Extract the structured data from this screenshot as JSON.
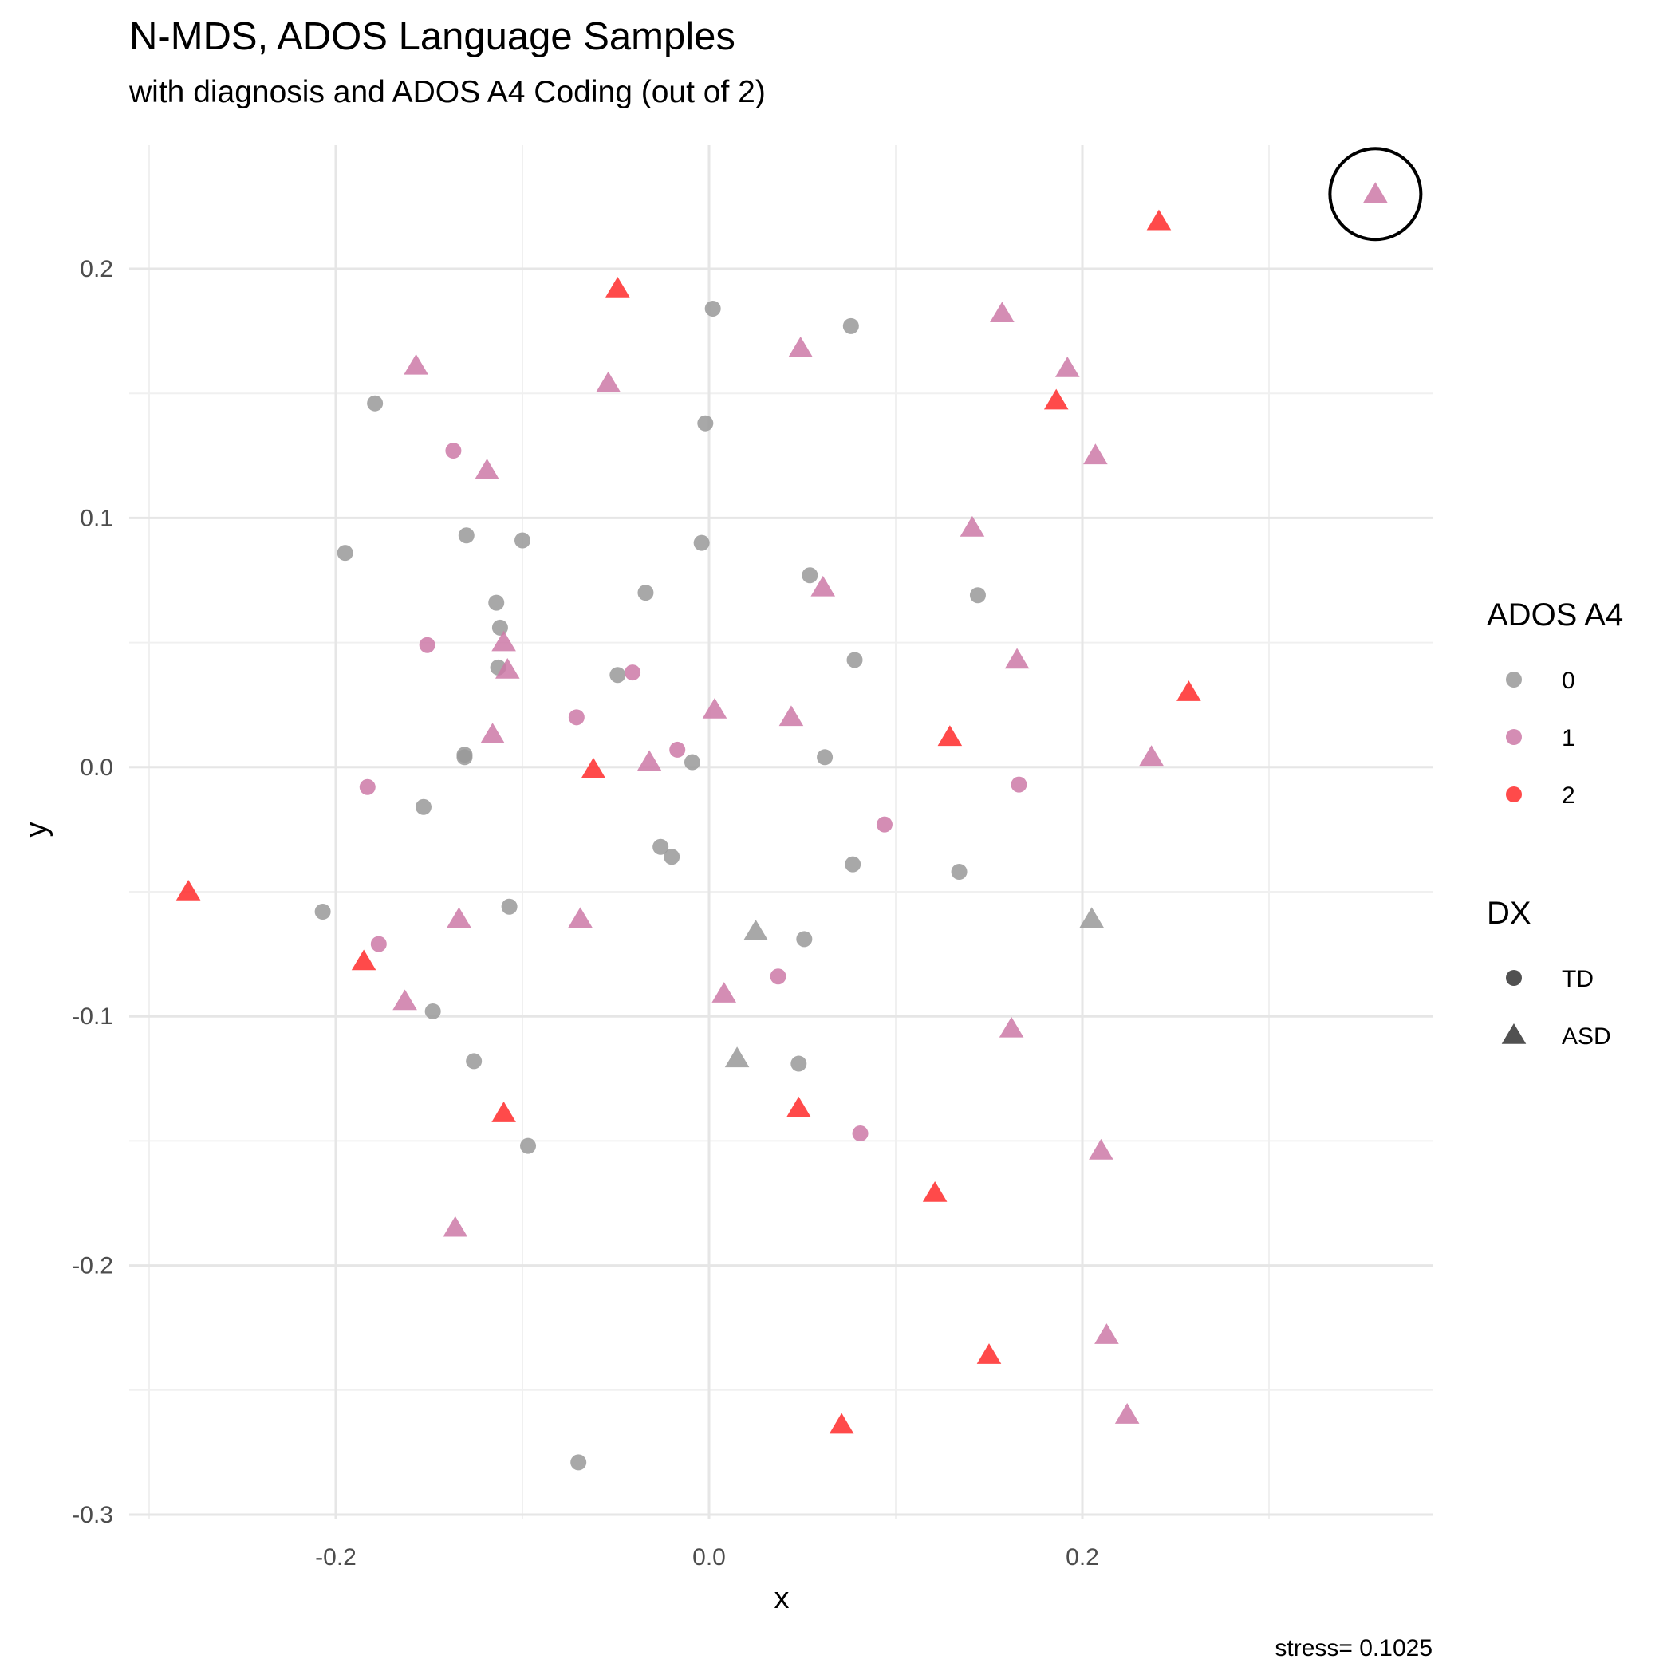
{
  "chart_data": {
    "type": "scatter",
    "title": "N-MDS, ADOS Language Samples",
    "subtitle": "with diagnosis and ADOS A4 Coding (out of 2)",
    "xlabel": "x",
    "ylabel": "y",
    "xlim": [
      -0.305,
      0.39
    ],
    "ylim": [
      -0.3,
      0.25
    ],
    "x_ticks": [
      -0.2,
      0.0,
      0.2
    ],
    "x_tick_labels": [
      "-0.2",
      "0.0",
      "0.2"
    ],
    "y_ticks": [
      -0.3,
      -0.2,
      -0.1,
      0.0,
      0.1,
      0.2
    ],
    "y_tick_labels": [
      "-0.3",
      "-0.2",
      "-0.1",
      "0.0",
      "0.1",
      "0.2"
    ],
    "grid": true,
    "legend_position": "right",
    "caption": "stress= 0.1025",
    "colors": {
      "0": "#999999",
      "1": "#cc79a7",
      "2": "#ff2a2a"
    },
    "legend": {
      "color_title": "ADOS A4",
      "color_entries": [
        {
          "label": "0",
          "key": "0"
        },
        {
          "label": "1",
          "key": "1"
        },
        {
          "label": "2",
          "key": "2"
        }
      ],
      "shape_title": "DX",
      "shape_entries": [
        {
          "label": "TD",
          "shape": "circle"
        },
        {
          "label": "ASD",
          "shape": "triangle"
        }
      ]
    },
    "highlight": {
      "x": 0.357,
      "y": 0.23
    },
    "points": [
      {
        "x": 0.002,
        "y": 0.184,
        "ados": "0",
        "dx": "TD"
      },
      {
        "x": 0.076,
        "y": 0.177,
        "ados": "0",
        "dx": "TD"
      },
      {
        "x": -0.179,
        "y": 0.146,
        "ados": "0",
        "dx": "TD"
      },
      {
        "x": -0.002,
        "y": 0.138,
        "ados": "0",
        "dx": "TD"
      },
      {
        "x": -0.195,
        "y": 0.086,
        "ados": "0",
        "dx": "TD"
      },
      {
        "x": -0.13,
        "y": 0.093,
        "ados": "0",
        "dx": "TD"
      },
      {
        "x": -0.1,
        "y": 0.091,
        "ados": "0",
        "dx": "TD"
      },
      {
        "x": -0.004,
        "y": 0.09,
        "ados": "0",
        "dx": "TD"
      },
      {
        "x": -0.034,
        "y": 0.07,
        "ados": "0",
        "dx": "TD"
      },
      {
        "x": 0.054,
        "y": 0.077,
        "ados": "0",
        "dx": "TD"
      },
      {
        "x": 0.144,
        "y": 0.069,
        "ados": "0",
        "dx": "TD"
      },
      {
        "x": -0.114,
        "y": 0.066,
        "ados": "0",
        "dx": "TD"
      },
      {
        "x": -0.112,
        "y": 0.056,
        "ados": "0",
        "dx": "TD"
      },
      {
        "x": -0.113,
        "y": 0.04,
        "ados": "0",
        "dx": "TD"
      },
      {
        "x": -0.049,
        "y": 0.037,
        "ados": "0",
        "dx": "TD"
      },
      {
        "x": 0.078,
        "y": 0.043,
        "ados": "0",
        "dx": "TD"
      },
      {
        "x": -0.131,
        "y": 0.005,
        "ados": "0",
        "dx": "TD"
      },
      {
        "x": -0.131,
        "y": 0.004,
        "ados": "0",
        "dx": "TD"
      },
      {
        "x": -0.009,
        "y": 0.002,
        "ados": "0",
        "dx": "TD"
      },
      {
        "x": 0.062,
        "y": 0.004,
        "ados": "0",
        "dx": "TD"
      },
      {
        "x": -0.153,
        "y": -0.016,
        "ados": "0",
        "dx": "TD"
      },
      {
        "x": -0.026,
        "y": -0.032,
        "ados": "0",
        "dx": "TD"
      },
      {
        "x": -0.02,
        "y": -0.036,
        "ados": "0",
        "dx": "TD"
      },
      {
        "x": 0.077,
        "y": -0.039,
        "ados": "0",
        "dx": "TD"
      },
      {
        "x": 0.134,
        "y": -0.042,
        "ados": "0",
        "dx": "TD"
      },
      {
        "x": -0.207,
        "y": -0.058,
        "ados": "0",
        "dx": "TD"
      },
      {
        "x": -0.107,
        "y": -0.056,
        "ados": "0",
        "dx": "TD"
      },
      {
        "x": 0.051,
        "y": -0.069,
        "ados": "0",
        "dx": "TD"
      },
      {
        "x": -0.148,
        "y": -0.098,
        "ados": "0",
        "dx": "TD"
      },
      {
        "x": -0.126,
        "y": -0.118,
        "ados": "0",
        "dx": "TD"
      },
      {
        "x": 0.048,
        "y": -0.119,
        "ados": "0",
        "dx": "TD"
      },
      {
        "x": -0.097,
        "y": -0.152,
        "ados": "0",
        "dx": "TD"
      },
      {
        "x": -0.07,
        "y": -0.279,
        "ados": "0",
        "dx": "TD"
      },
      {
        "x": -0.137,
        "y": 0.127,
        "ados": "1",
        "dx": "TD"
      },
      {
        "x": -0.151,
        "y": 0.049,
        "ados": "1",
        "dx": "TD"
      },
      {
        "x": -0.041,
        "y": 0.038,
        "ados": "1",
        "dx": "TD"
      },
      {
        "x": -0.071,
        "y": 0.02,
        "ados": "1",
        "dx": "TD"
      },
      {
        "x": -0.017,
        "y": 0.007,
        "ados": "1",
        "dx": "TD"
      },
      {
        "x": -0.183,
        "y": -0.008,
        "ados": "1",
        "dx": "TD"
      },
      {
        "x": 0.166,
        "y": -0.007,
        "ados": "1",
        "dx": "TD"
      },
      {
        "x": 0.094,
        "y": -0.023,
        "ados": "1",
        "dx": "TD"
      },
      {
        "x": -0.177,
        "y": -0.071,
        "ados": "1",
        "dx": "TD"
      },
      {
        "x": 0.037,
        "y": -0.084,
        "ados": "1",
        "dx": "TD"
      },
      {
        "x": 0.081,
        "y": -0.147,
        "ados": "1",
        "dx": "TD"
      },
      {
        "x": 0.357,
        "y": 0.23,
        "ados": "1",
        "dx": "ASD"
      },
      {
        "x": 0.157,
        "y": 0.182,
        "ados": "1",
        "dx": "ASD"
      },
      {
        "x": 0.049,
        "y": 0.168,
        "ados": "1",
        "dx": "ASD"
      },
      {
        "x": -0.157,
        "y": 0.161,
        "ados": "1",
        "dx": "ASD"
      },
      {
        "x": 0.192,
        "y": 0.16,
        "ados": "1",
        "dx": "ASD"
      },
      {
        "x": -0.054,
        "y": 0.154,
        "ados": "1",
        "dx": "ASD"
      },
      {
        "x": 0.207,
        "y": 0.125,
        "ados": "1",
        "dx": "ASD"
      },
      {
        "x": -0.119,
        "y": 0.119,
        "ados": "1",
        "dx": "ASD"
      },
      {
        "x": 0.141,
        "y": 0.096,
        "ados": "1",
        "dx": "ASD"
      },
      {
        "x": 0.061,
        "y": 0.072,
        "ados": "1",
        "dx": "ASD"
      },
      {
        "x": -0.11,
        "y": 0.05,
        "ados": "1",
        "dx": "ASD"
      },
      {
        "x": 0.165,
        "y": 0.043,
        "ados": "1",
        "dx": "ASD"
      },
      {
        "x": -0.108,
        "y": 0.039,
        "ados": "1",
        "dx": "ASD"
      },
      {
        "x": 0.003,
        "y": 0.023,
        "ados": "1",
        "dx": "ASD"
      },
      {
        "x": 0.044,
        "y": 0.02,
        "ados": "1",
        "dx": "ASD"
      },
      {
        "x": -0.116,
        "y": 0.013,
        "ados": "1",
        "dx": "ASD"
      },
      {
        "x": -0.032,
        "y": 0.002,
        "ados": "1",
        "dx": "ASD"
      },
      {
        "x": 0.237,
        "y": 0.004,
        "ados": "1",
        "dx": "ASD"
      },
      {
        "x": -0.134,
        "y": -0.061,
        "ados": "1",
        "dx": "ASD"
      },
      {
        "x": -0.069,
        "y": -0.061,
        "ados": "1",
        "dx": "ASD"
      },
      {
        "x": 0.008,
        "y": -0.091,
        "ados": "1",
        "dx": "ASD"
      },
      {
        "x": -0.163,
        "y": -0.094,
        "ados": "1",
        "dx": "ASD"
      },
      {
        "x": 0.162,
        "y": -0.105,
        "ados": "1",
        "dx": "ASD"
      },
      {
        "x": 0.21,
        "y": -0.154,
        "ados": "1",
        "dx": "ASD"
      },
      {
        "x": -0.136,
        "y": -0.185,
        "ados": "1",
        "dx": "ASD"
      },
      {
        "x": 0.213,
        "y": -0.228,
        "ados": "1",
        "dx": "ASD"
      },
      {
        "x": 0.224,
        "y": -0.26,
        "ados": "1",
        "dx": "ASD"
      },
      {
        "x": 0.025,
        "y": -0.066,
        "ados": "0",
        "dx": "ASD"
      },
      {
        "x": 0.205,
        "y": -0.061,
        "ados": "0",
        "dx": "ASD"
      },
      {
        "x": 0.015,
        "y": -0.117,
        "ados": "0",
        "dx": "ASD"
      },
      {
        "x": 0.241,
        "y": 0.219,
        "ados": "2",
        "dx": "ASD"
      },
      {
        "x": -0.049,
        "y": 0.192,
        "ados": "2",
        "dx": "ASD"
      },
      {
        "x": 0.186,
        "y": 0.147,
        "ados": "2",
        "dx": "ASD"
      },
      {
        "x": 0.257,
        "y": 0.03,
        "ados": "2",
        "dx": "ASD"
      },
      {
        "x": 0.129,
        "y": 0.012,
        "ados": "2",
        "dx": "ASD"
      },
      {
        "x": -0.062,
        "y": -0.001,
        "ados": "2",
        "dx": "ASD"
      },
      {
        "x": -0.279,
        "y": -0.05,
        "ados": "2",
        "dx": "ASD"
      },
      {
        "x": -0.185,
        "y": -0.078,
        "ados": "2",
        "dx": "ASD"
      },
      {
        "x": -0.11,
        "y": -0.139,
        "ados": "2",
        "dx": "ASD"
      },
      {
        "x": 0.048,
        "y": -0.137,
        "ados": "2",
        "dx": "ASD"
      },
      {
        "x": 0.121,
        "y": -0.171,
        "ados": "2",
        "dx": "ASD"
      },
      {
        "x": 0.15,
        "y": -0.236,
        "ados": "2",
        "dx": "ASD"
      },
      {
        "x": 0.071,
        "y": -0.264,
        "ados": "2",
        "dx": "ASD"
      }
    ]
  }
}
